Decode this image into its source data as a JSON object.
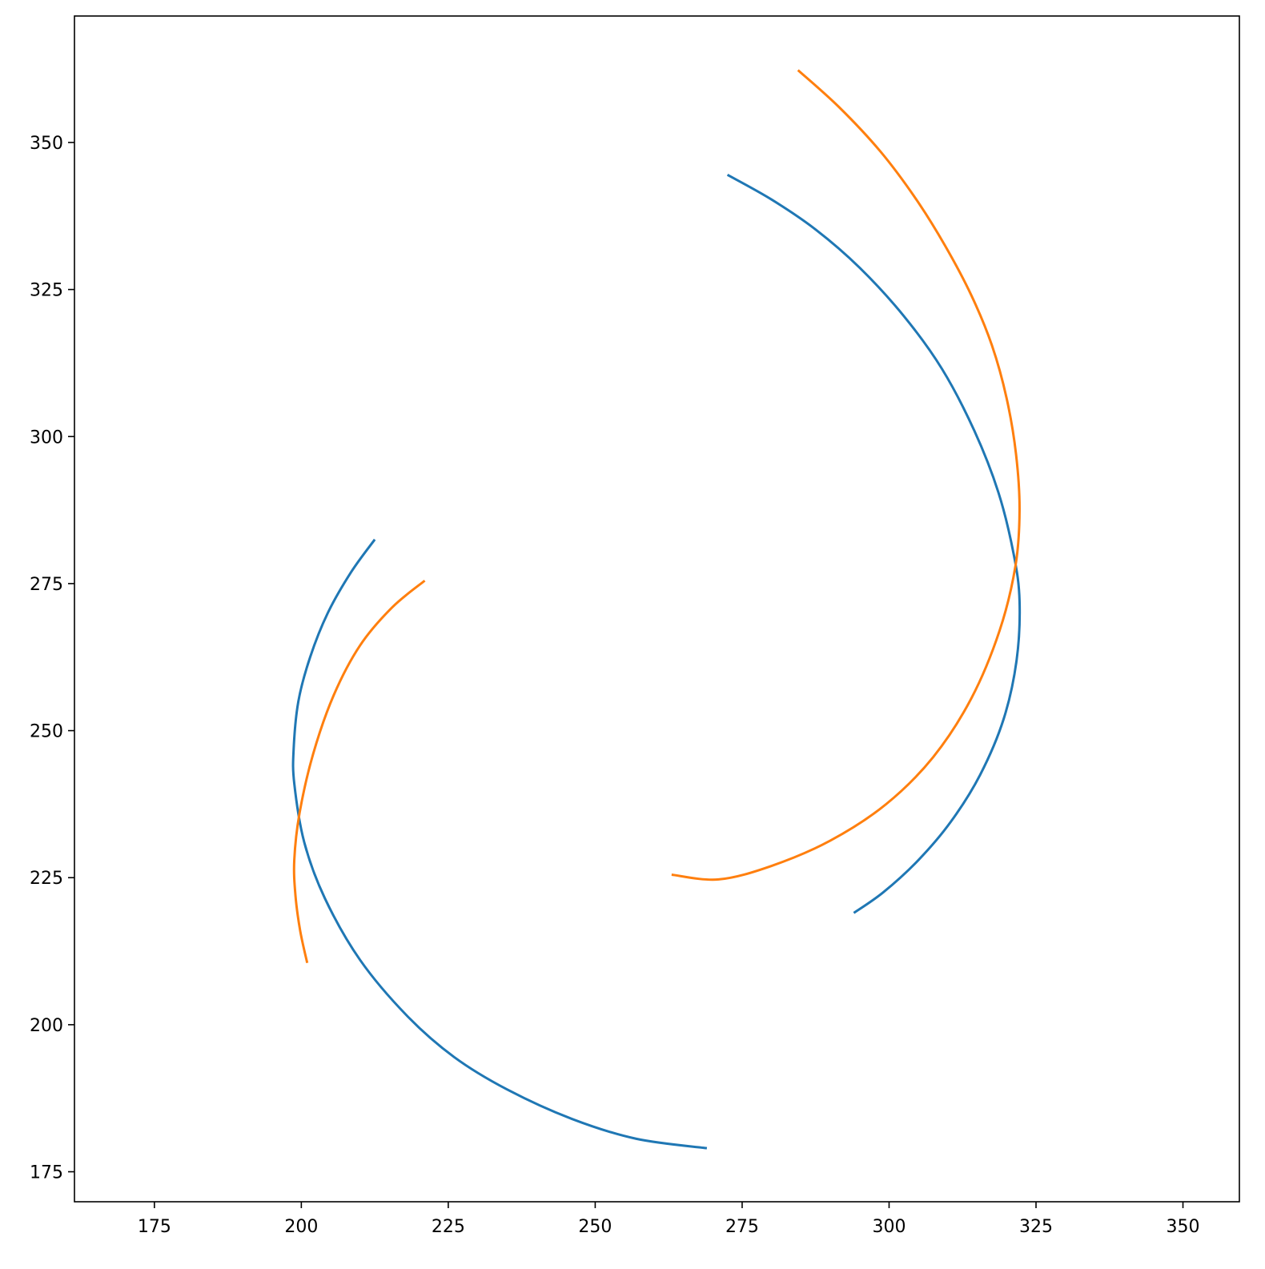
{
  "chart_data": {
    "type": "line",
    "title": "",
    "xlabel": "",
    "ylabel": "",
    "xlim": [
      161.4,
      359.6
    ],
    "ylim": [
      169.9,
      371.5
    ],
    "xticks": [
      175,
      200,
      225,
      250,
      275,
      300,
      325,
      350
    ],
    "yticks": [
      175,
      200,
      225,
      250,
      275,
      300,
      325,
      350
    ],
    "grid": false,
    "legend": "none",
    "colors": {
      "frame": "#000000",
      "background": "#ffffff"
    },
    "series": [
      {
        "color": "#1f77b4",
        "x": [
          212.5,
          208.5,
          204.5,
          201.5,
          199.5,
          198.7,
          198.8,
          200.5,
          204.0,
          210.0,
          218.0,
          226.0,
          235.0,
          246.0,
          257.0,
          269.0
        ],
        "y": [
          282.5,
          277.0,
          270.0,
          262.5,
          255.0,
          247.0,
          241.0,
          231.0,
          221.5,
          211.0,
          201.5,
          194.5,
          189.0,
          184.0,
          180.6,
          179.0
        ]
      },
      {
        "color": "#1f77b4",
        "x": [
          272.5,
          280.0,
          287.5,
          295.0,
          302.5,
          309.0,
          314.5,
          318.6,
          321.2,
          322.2,
          321.7,
          319.5,
          315.5,
          310.5,
          305.0,
          299.0,
          294.0
        ],
        "y": [
          344.5,
          340.3,
          335.2,
          328.7,
          320.5,
          311.5,
          301.0,
          290.5,
          280.0,
          272.0,
          262.0,
          252.0,
          242.5,
          234.5,
          228.0,
          222.5,
          219.0
        ]
      },
      {
        "color": "#ff7f0e",
        "x": [
          284.5,
          291.5,
          298.5,
          304.5,
          309.5,
          314.0,
          317.5,
          320.0,
          321.6,
          322.2,
          321.5,
          318.8,
          314.0,
          307.5,
          299.5,
          290.0,
          280.0,
          271.0,
          263.0
        ],
        "y": [
          362.3,
          356.0,
          348.5,
          340.5,
          332.5,
          324.0,
          315.5,
          306.5,
          297.0,
          287.5,
          278.0,
          267.0,
          255.5,
          245.5,
          237.5,
          231.3,
          227.0,
          224.7,
          225.5
        ]
      },
      {
        "color": "#ff7f0e",
        "x": [
          221.0,
          215.5,
          210.0,
          205.5,
          202.0,
          199.7,
          198.8,
          199.0,
          199.8,
          201.0
        ],
        "y": [
          275.5,
          271.0,
          264.5,
          256.0,
          246.0,
          236.0,
          228.0,
          222.0,
          216.0,
          210.5
        ]
      }
    ]
  }
}
